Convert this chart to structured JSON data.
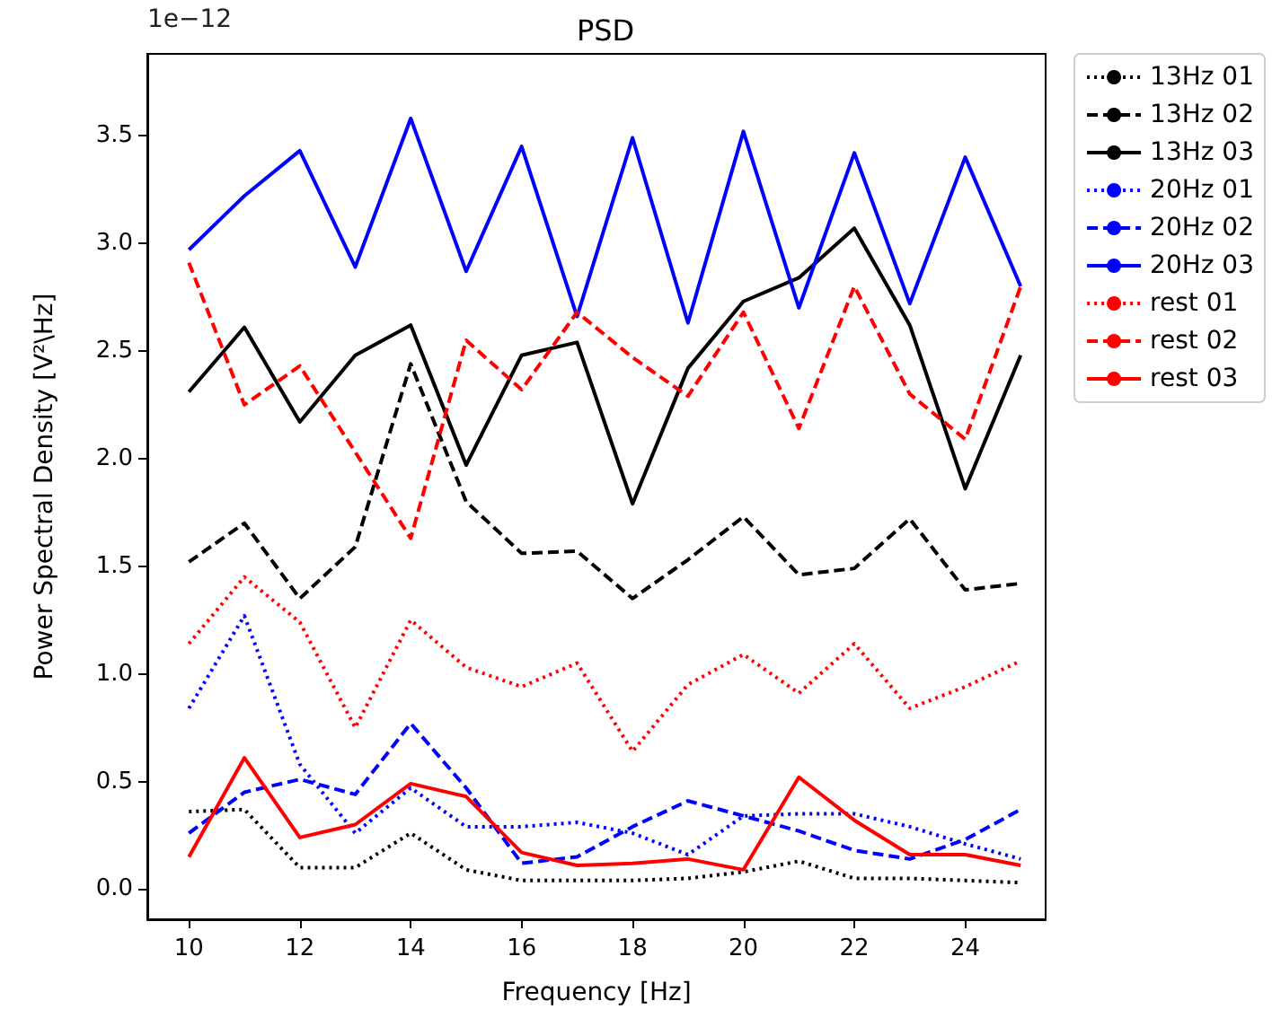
{
  "chart_data": {
    "type": "line",
    "title": "PSD",
    "xlabel": "Frequency [Hz]",
    "ylabel": "Power Spectral Density [V²\\Hz]",
    "annotations": [
      "1e−12"
    ],
    "x": [
      10,
      11,
      12,
      13,
      14,
      15,
      16,
      17,
      18,
      19,
      20,
      21,
      22,
      23,
      24,
      25
    ],
    "xlim": [
      9.25,
      25.45
    ],
    "xticks": [
      10,
      12,
      14,
      16,
      18,
      20,
      22,
      24
    ],
    "ylim": [
      -0.14,
      3.88
    ],
    "yticks": [
      {
        "value": 0,
        "label": "0.0"
      },
      0.5,
      {
        "value": 1,
        "label": "1.0"
      },
      1.5,
      {
        "value": 2,
        "label": "2.0"
      },
      2.5,
      {
        "value": 3,
        "label": "3.0"
      },
      3.5
    ],
    "grid": false,
    "legend": "top right",
    "marker": "none",
    "series": [
      {
        "name": "13Hz 01",
        "color": "#000000",
        "line_style": "dotted",
        "values": [
          0.36,
          0.37,
          0.1,
          0.1,
          0.26,
          0.09,
          0.04,
          0.04,
          0.04,
          0.05,
          0.08,
          0.13,
          0.05,
          0.05,
          0.04,
          0.03
        ]
      },
      {
        "name": "13Hz 02",
        "color": "#000000",
        "line_style": "dashed",
        "values": [
          1.52,
          1.7,
          1.35,
          1.59,
          2.44,
          1.8,
          1.56,
          1.57,
          1.35,
          1.53,
          1.73,
          1.46,
          1.49,
          1.72,
          1.39,
          1.42
        ]
      },
      {
        "name": "13Hz 03",
        "color": "#000000",
        "line_style": "solid",
        "values": [
          2.31,
          2.61,
          2.17,
          2.48,
          2.62,
          1.97,
          2.48,
          2.54,
          1.79,
          2.42,
          2.73,
          2.84,
          3.07,
          2.62,
          1.86,
          2.48
        ]
      },
      {
        "name": "20Hz 01",
        "color": "#0000ff",
        "line_style": "dotted",
        "values": [
          0.84,
          1.27,
          0.58,
          0.26,
          0.47,
          0.29,
          0.29,
          0.31,
          0.26,
          0.16,
          0.34,
          0.35,
          0.35,
          0.29,
          0.21,
          0.14
        ]
      },
      {
        "name": "20Hz 02",
        "color": "#0000ff",
        "line_style": "dashed",
        "values": [
          0.26,
          0.45,
          0.51,
          0.44,
          0.77,
          0.47,
          0.12,
          0.15,
          0.29,
          0.41,
          0.34,
          0.27,
          0.18,
          0.14,
          0.23,
          0.37
        ]
      },
      {
        "name": "20Hz 03",
        "color": "#0000ff",
        "line_style": "solid",
        "values": [
          2.97,
          3.22,
          3.43,
          2.89,
          3.58,
          2.87,
          3.45,
          2.66,
          3.49,
          2.63,
          3.52,
          2.7,
          3.42,
          2.72,
          3.4,
          2.8
        ]
      },
      {
        "name": "rest 01",
        "color": "#ff0000",
        "line_style": "dotted",
        "values": [
          1.14,
          1.45,
          1.24,
          0.75,
          1.25,
          1.03,
          0.94,
          1.05,
          0.64,
          0.95,
          1.09,
          0.91,
          1.14,
          0.84,
          0.94,
          1.06
        ]
      },
      {
        "name": "rest 02",
        "color": "#ff0000",
        "line_style": "dashed",
        "values": [
          2.91,
          2.25,
          2.43,
          2.03,
          1.63,
          2.55,
          2.32,
          2.68,
          2.47,
          2.29,
          2.68,
          2.14,
          2.8,
          2.3,
          2.09,
          2.8
        ]
      },
      {
        "name": "rest 03",
        "color": "#ff0000",
        "line_style": "solid",
        "values": [
          0.15,
          0.61,
          0.24,
          0.3,
          0.49,
          0.43,
          0.17,
          0.11,
          0.12,
          0.14,
          0.09,
          0.52,
          0.32,
          0.16,
          0.16,
          0.11
        ]
      }
    ]
  }
}
